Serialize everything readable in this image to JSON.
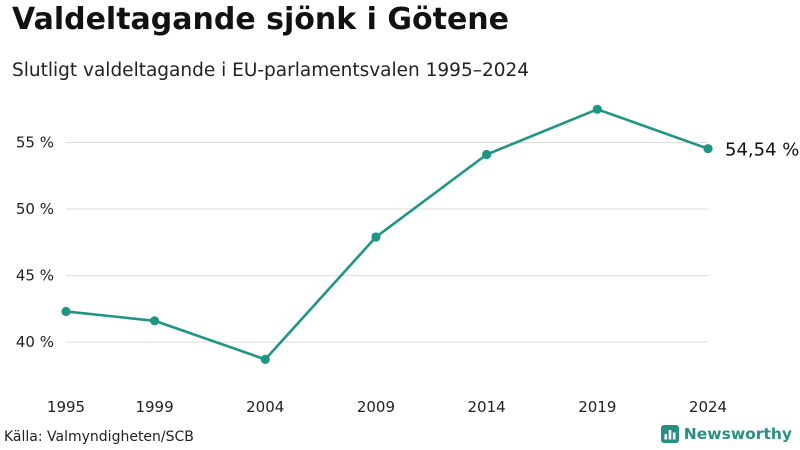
{
  "header": {
    "title": "Valdeltagande sjönk i Götene",
    "subtitle": "Slutligt valdeltagande i EU-parlamentsvalen 1995–2024"
  },
  "footer": {
    "source": "Källa: Valmyndigheten/SCB",
    "brand": "Newsworthy",
    "brand_icon": "bar-chart-logo-icon"
  },
  "colors": {
    "line": "#1f9585",
    "grid": "#dcdcdc",
    "brand": "#2a8f83",
    "text": "#222222"
  },
  "chart_data": {
    "type": "line",
    "title": "Valdeltagande sjönk i Götene",
    "subtitle": "Slutligt valdeltagande i EU-parlamentsvalen 1995–2024",
    "xlabel": "",
    "ylabel": "",
    "categories": [
      "1995",
      "1999",
      "2004",
      "2009",
      "2014",
      "2019",
      "2024"
    ],
    "x": [
      1995,
      1999,
      2004,
      2009,
      2014,
      2019,
      2024
    ],
    "series": [
      {
        "name": "Valdeltagande",
        "values": [
          42.3,
          41.6,
          38.7,
          47.9,
          54.1,
          57.5,
          54.54
        ]
      }
    ],
    "yticks": [
      40,
      45,
      50,
      55
    ],
    "ytick_labels": [
      "40 %",
      "45 %",
      "50 %",
      "55 %"
    ],
    "ylim": [
      37.6,
      58.8
    ],
    "xlim": [
      1995,
      2024
    ],
    "grid": true,
    "end_label": "54,54 %"
  }
}
